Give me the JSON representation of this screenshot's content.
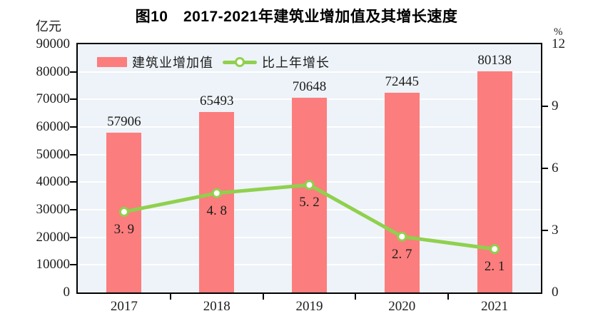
{
  "page": {
    "background": "#ffffff"
  },
  "chart_data": {
    "type": "bar+line",
    "title": "图10　2017-2021年建筑业增加值及其增长速度",
    "grid": true,
    "legend_position": "top-left-inside",
    "plot_background": "#edf3f8",
    "gridline_color": "#ffffff",
    "axis_color": "#000000",
    "text_color": "#1c1c1c",
    "categories": [
      "2017",
      "2018",
      "2019",
      "2020",
      "2021"
    ],
    "left_axis": {
      "unit": "亿元",
      "min": 0,
      "max": 90000,
      "tick_step": 10000,
      "ticks": [
        "0",
        "10000",
        "20000",
        "30000",
        "40000",
        "50000",
        "60000",
        "70000",
        "80000",
        "90000"
      ]
    },
    "right_axis": {
      "unit": "%",
      "min": 0,
      "max": 12,
      "tick_step": 3,
      "ticks": [
        "0",
        "3",
        "6",
        "9",
        "12"
      ]
    },
    "series": [
      {
        "name": "建筑业增加值",
        "type": "bar",
        "axis": "left",
        "color": "#fc7d7d",
        "values": [
          57906,
          65493,
          70648,
          72445,
          80138
        ],
        "labels": [
          "57906",
          "65493",
          "70648",
          "72445",
          "80138"
        ]
      },
      {
        "name": "比上年增长",
        "type": "line",
        "axis": "right",
        "color": "#90d04e",
        "marker_fill": "#ffffff",
        "values": [
          3.9,
          4.8,
          5.2,
          2.7,
          2.1
        ],
        "labels": [
          "3. 9",
          "4. 8",
          "5. 2",
          "2. 7",
          "2. 1"
        ]
      }
    ]
  }
}
